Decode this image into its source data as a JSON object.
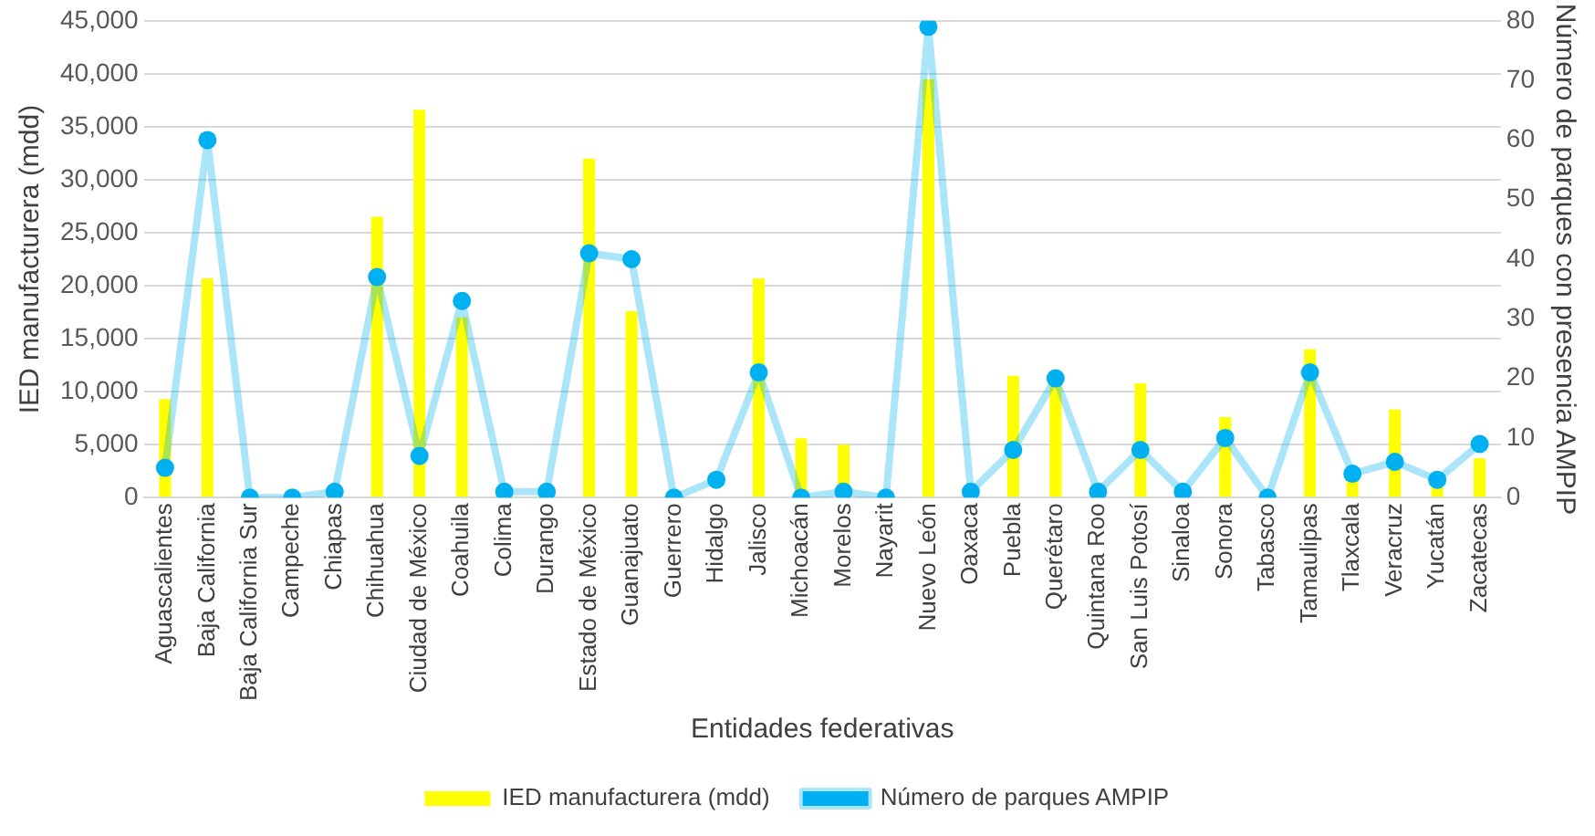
{
  "chart_data": {
    "type": "bar",
    "xlabel": "Entidades federativas",
    "ylabel": "IED manufacturera (mdd)",
    "y2label": "Número de parques con presencia AMPIP",
    "categories": [
      "Aguascalientes",
      "Baja California",
      "Baja California Sur",
      "Campeche",
      "Chiapas",
      "Chihuahua",
      "Ciudad de México",
      "Coahuila",
      "Colima",
      "Durango",
      "Estado de México",
      "Guanajuato",
      "Guerrero",
      "Hidalgo",
      "Jalisco",
      "Michoacán",
      "Morelos",
      "Nayarit",
      "Nuevo León",
      "Oaxaca",
      "Puebla",
      "Querétaro",
      "Quintana Roo",
      "San Luis Potosí",
      "Sinaloa",
      "Sonora",
      "Tabasco",
      "Tamaulipas",
      "Tlaxcala",
      "Veracruz",
      "Yucatán",
      "Zacatecas"
    ],
    "series": [
      {
        "name": "IED manufacturera (mdd)",
        "color": "#ffff00",
        "values": [
          9300,
          20700,
          0,
          0,
          null,
          26500,
          36600,
          17000,
          null,
          null,
          32000,
          17600,
          null,
          null,
          20700,
          5600,
          5000,
          null,
          39500,
          null,
          11500,
          11000,
          null,
          10800,
          null,
          7600,
          0,
          14000,
          2000,
          8300,
          1000,
          3700
        ]
      },
      {
        "name": "Número de parques AMPIP",
        "type": "line",
        "axis": "y2",
        "color": "#00b0f0",
        "values": [
          5,
          60,
          0,
          0,
          1,
          37,
          7,
          33,
          1,
          1,
          41,
          40,
          0,
          3,
          21,
          0,
          1,
          0,
          79,
          1,
          8,
          20,
          1,
          8,
          1,
          10,
          0,
          21,
          4,
          6,
          3,
          9
        ]
      }
    ],
    "ylim": [
      0,
      45000
    ],
    "yticks": [
      {
        "value": 0,
        "label": "0"
      },
      {
        "value": 5000,
        "label": "5,000"
      },
      {
        "value": 10000,
        "label": "10,000"
      },
      {
        "value": 15000,
        "label": "15,000"
      },
      {
        "value": 20000,
        "label": "20,000"
      },
      {
        "value": 25000,
        "label": "25,000"
      },
      {
        "value": 30000,
        "label": "30,000"
      },
      {
        "value": 35000,
        "label": "35,000"
      },
      {
        "value": 40000,
        "label": "40,000"
      },
      {
        "value": 45000,
        "label": "45,000"
      }
    ],
    "y2lim": [
      0,
      80
    ],
    "y2ticks": [
      0,
      10,
      20,
      30,
      40,
      50,
      60,
      70,
      80
    ],
    "grid": "y",
    "legend": "bottom",
    "marker": "circle",
    "line_style": "solid"
  }
}
